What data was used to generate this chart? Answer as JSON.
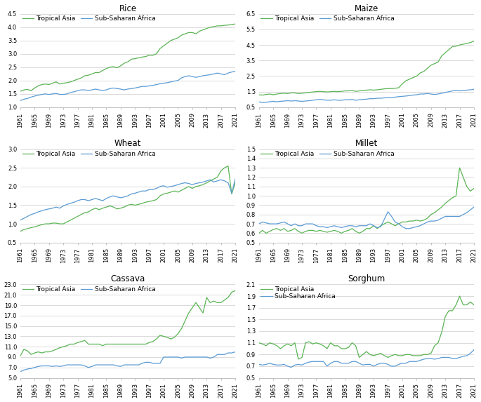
{
  "years": [
    1961,
    1962,
    1963,
    1964,
    1965,
    1966,
    1967,
    1968,
    1969,
    1970,
    1971,
    1972,
    1973,
    1974,
    1975,
    1976,
    1977,
    1978,
    1979,
    1980,
    1981,
    1982,
    1983,
    1984,
    1985,
    1986,
    1987,
    1988,
    1989,
    1990,
    1991,
    1992,
    1993,
    1994,
    1995,
    1996,
    1997,
    1998,
    1999,
    2000,
    2001,
    2002,
    2003,
    2004,
    2005,
    2006,
    2007,
    2008,
    2009,
    2010,
    2011,
    2012,
    2013,
    2014,
    2015,
    2016,
    2017,
    2018,
    2019,
    2020,
    2021
  ],
  "rice": {
    "asia": [
      1.6,
      1.65,
      1.67,
      1.62,
      1.72,
      1.8,
      1.85,
      1.87,
      1.85,
      1.9,
      1.95,
      1.87,
      1.9,
      1.92,
      1.95,
      2.0,
      2.05,
      2.1,
      2.18,
      2.2,
      2.25,
      2.3,
      2.3,
      2.38,
      2.45,
      2.5,
      2.52,
      2.48,
      2.55,
      2.65,
      2.7,
      2.8,
      2.82,
      2.85,
      2.88,
      2.9,
      2.95,
      2.95,
      3.0,
      3.2,
      3.3,
      3.4,
      3.5,
      3.55,
      3.6,
      3.7,
      3.75,
      3.8,
      3.8,
      3.75,
      3.85,
      3.9,
      3.95,
      4.0,
      4.02,
      4.05,
      4.05,
      4.07,
      4.08,
      4.1,
      4.12
    ],
    "africa": [
      1.25,
      1.3,
      1.33,
      1.38,
      1.42,
      1.45,
      1.48,
      1.5,
      1.48,
      1.5,
      1.52,
      1.48,
      1.48,
      1.5,
      1.55,
      1.58,
      1.62,
      1.65,
      1.65,
      1.63,
      1.65,
      1.68,
      1.65,
      1.63,
      1.65,
      1.7,
      1.72,
      1.7,
      1.68,
      1.65,
      1.68,
      1.7,
      1.72,
      1.75,
      1.78,
      1.78,
      1.8,
      1.82,
      1.85,
      1.88,
      1.9,
      1.92,
      1.95,
      1.98,
      2.0,
      2.1,
      2.15,
      2.18,
      2.15,
      2.12,
      2.15,
      2.18,
      2.2,
      2.22,
      2.25,
      2.28,
      2.25,
      2.22,
      2.28,
      2.32,
      2.35
    ]
  },
  "maize": {
    "asia": [
      1.3,
      1.28,
      1.32,
      1.35,
      1.3,
      1.35,
      1.38,
      1.4,
      1.38,
      1.42,
      1.42,
      1.38,
      1.4,
      1.42,
      1.45,
      1.48,
      1.5,
      1.52,
      1.5,
      1.48,
      1.5,
      1.52,
      1.5,
      1.52,
      1.55,
      1.55,
      1.58,
      1.52,
      1.55,
      1.58,
      1.6,
      1.62,
      1.6,
      1.62,
      1.65,
      1.68,
      1.7,
      1.7,
      1.72,
      1.75,
      2.0,
      2.2,
      2.3,
      2.4,
      2.5,
      2.7,
      2.8,
      3.0,
      3.2,
      3.3,
      3.4,
      3.8,
      4.0,
      4.2,
      4.4,
      4.42,
      4.5,
      4.55,
      4.6,
      4.65,
      4.75
    ],
    "africa": [
      0.85,
      0.8,
      0.82,
      0.85,
      0.88,
      0.85,
      0.88,
      0.9,
      0.92,
      0.9,
      0.92,
      0.9,
      0.88,
      0.9,
      0.92,
      0.95,
      0.98,
      1.0,
      0.98,
      0.95,
      0.95,
      0.98,
      0.95,
      0.95,
      0.98,
      0.98,
      1.0,
      0.95,
      0.98,
      1.0,
      1.02,
      1.05,
      1.05,
      1.08,
      1.08,
      1.1,
      1.12,
      1.12,
      1.15,
      1.18,
      1.2,
      1.22,
      1.25,
      1.28,
      1.3,
      1.35,
      1.35,
      1.38,
      1.35,
      1.32,
      1.35,
      1.4,
      1.45,
      1.5,
      1.55,
      1.58,
      1.55,
      1.58,
      1.6,
      1.62,
      1.65
    ]
  },
  "wheat": {
    "asia": [
      0.8,
      0.85,
      0.87,
      0.9,
      0.92,
      0.95,
      0.98,
      1.0,
      1.0,
      1.02,
      1.02,
      1.0,
      1.0,
      1.05,
      1.1,
      1.15,
      1.2,
      1.25,
      1.3,
      1.32,
      1.38,
      1.42,
      1.38,
      1.42,
      1.45,
      1.48,
      1.45,
      1.4,
      1.42,
      1.45,
      1.5,
      1.52,
      1.5,
      1.52,
      1.55,
      1.58,
      1.6,
      1.62,
      1.65,
      1.75,
      1.8,
      1.82,
      1.85,
      1.88,
      1.85,
      1.9,
      1.95,
      2.0,
      1.95,
      2.0,
      2.02,
      2.05,
      2.1,
      2.15,
      2.2,
      2.25,
      2.42,
      2.5,
      2.55,
      1.8,
      2.1
    ],
    "africa": [
      1.1,
      1.15,
      1.2,
      1.25,
      1.28,
      1.32,
      1.35,
      1.38,
      1.4,
      1.42,
      1.45,
      1.42,
      1.48,
      1.52,
      1.55,
      1.58,
      1.62,
      1.65,
      1.65,
      1.62,
      1.65,
      1.68,
      1.65,
      1.62,
      1.68,
      1.72,
      1.75,
      1.72,
      1.7,
      1.72,
      1.75,
      1.8,
      1.82,
      1.85,
      1.88,
      1.88,
      1.92,
      1.92,
      1.95,
      2.0,
      2.02,
      1.98,
      2.0,
      2.02,
      2.05,
      2.08,
      2.1,
      2.08,
      2.05,
      2.08,
      2.1,
      2.12,
      2.15,
      2.18,
      2.12,
      2.15,
      2.18,
      2.15,
      2.1,
      1.82,
      2.2
    ]
  },
  "millet": {
    "asia": [
      0.6,
      0.63,
      0.6,
      0.62,
      0.64,
      0.65,
      0.63,
      0.65,
      0.62,
      0.63,
      0.65,
      0.62,
      0.6,
      0.62,
      0.63,
      0.63,
      0.62,
      0.63,
      0.62,
      0.61,
      0.62,
      0.63,
      0.62,
      0.6,
      0.62,
      0.63,
      0.65,
      0.62,
      0.6,
      0.62,
      0.65,
      0.65,
      0.68,
      0.65,
      0.68,
      0.7,
      0.72,
      0.7,
      0.68,
      0.7,
      0.72,
      0.72,
      0.73,
      0.73,
      0.74,
      0.73,
      0.74,
      0.76,
      0.8,
      0.82,
      0.85,
      0.88,
      0.92,
      0.95,
      0.98,
      1.0,
      1.3,
      1.2,
      1.1,
      1.05,
      1.08
    ],
    "africa": [
      0.7,
      0.72,
      0.71,
      0.7,
      0.7,
      0.7,
      0.71,
      0.72,
      0.7,
      0.68,
      0.7,
      0.68,
      0.68,
      0.7,
      0.7,
      0.7,
      0.68,
      0.67,
      0.67,
      0.66,
      0.67,
      0.68,
      0.67,
      0.66,
      0.67,
      0.68,
      0.68,
      0.67,
      0.68,
      0.68,
      0.68,
      0.7,
      0.68,
      0.66,
      0.67,
      0.75,
      0.83,
      0.78,
      0.72,
      0.7,
      0.67,
      0.65,
      0.65,
      0.66,
      0.67,
      0.68,
      0.7,
      0.72,
      0.73,
      0.73,
      0.74,
      0.76,
      0.78,
      0.78,
      0.78,
      0.78,
      0.78,
      0.8,
      0.82,
      0.85,
      0.88
    ]
  },
  "cassava": {
    "asia": [
      9.2,
      10.5,
      10.2,
      9.5,
      9.8,
      10.0,
      9.8,
      10.0,
      10.0,
      10.2,
      10.5,
      10.8,
      11.0,
      11.2,
      11.5,
      11.5,
      11.8,
      12.0,
      12.2,
      11.5,
      11.5,
      11.5,
      11.5,
      11.2,
      11.5,
      11.5,
      11.5,
      11.5,
      11.5,
      11.5,
      11.5,
      11.5,
      11.5,
      11.5,
      11.5,
      11.5,
      11.8,
      12.0,
      12.5,
      13.2,
      13.0,
      12.8,
      12.5,
      12.8,
      13.5,
      14.5,
      16.0,
      17.5,
      18.5,
      19.5,
      18.5,
      17.5,
      20.5,
      19.5,
      19.8,
      19.5,
      19.5,
      20.0,
      20.5,
      21.5,
      21.8
    ],
    "africa": [
      6.2,
      6.5,
      6.7,
      6.8,
      7.0,
      7.2,
      7.3,
      7.3,
      7.3,
      7.2,
      7.3,
      7.2,
      7.3,
      7.5,
      7.5,
      7.5,
      7.5,
      7.5,
      7.3,
      7.0,
      7.2,
      7.5,
      7.5,
      7.5,
      7.5,
      7.5,
      7.5,
      7.3,
      7.2,
      7.5,
      7.5,
      7.5,
      7.5,
      7.5,
      7.8,
      8.0,
      8.0,
      7.8,
      7.8,
      7.8,
      9.0,
      9.0,
      9.0,
      9.0,
      9.0,
      8.8,
      9.0,
      9.0,
      9.0,
      9.0,
      9.0,
      9.0,
      9.0,
      8.8,
      9.0,
      9.5,
      9.5,
      9.5,
      9.8,
      9.8,
      10.0
    ]
  },
  "sorghum": {
    "asia": [
      1.1,
      1.08,
      1.05,
      1.1,
      1.08,
      1.05,
      1.0,
      1.05,
      1.08,
      1.05,
      1.1,
      0.82,
      0.85,
      1.1,
      1.12,
      1.08,
      1.1,
      1.08,
      1.05,
      1.0,
      1.1,
      1.05,
      1.05,
      1.0,
      1.0,
      1.02,
      1.1,
      1.05,
      0.85,
      0.9,
      0.95,
      0.9,
      0.88,
      0.9,
      0.92,
      0.88,
      0.85,
      0.88,
      0.9,
      0.88,
      0.88,
      0.9,
      0.9,
      0.88,
      0.88,
      0.88,
      0.9,
      0.9,
      0.92,
      1.05,
      1.1,
      1.28,
      1.55,
      1.65,
      1.65,
      1.75,
      1.9,
      1.75,
      1.75,
      1.8,
      1.75
    ],
    "africa": [
      0.73,
      0.72,
      0.73,
      0.75,
      0.73,
      0.72,
      0.72,
      0.73,
      0.7,
      0.68,
      0.72,
      0.73,
      0.72,
      0.75,
      0.77,
      0.78,
      0.78,
      0.78,
      0.78,
      0.7,
      0.75,
      0.78,
      0.78,
      0.75,
      0.75,
      0.75,
      0.78,
      0.78,
      0.75,
      0.72,
      0.73,
      0.73,
      0.7,
      0.73,
      0.75,
      0.75,
      0.73,
      0.7,
      0.7,
      0.73,
      0.75,
      0.75,
      0.78,
      0.78,
      0.78,
      0.8,
      0.82,
      0.83,
      0.83,
      0.82,
      0.83,
      0.85,
      0.85,
      0.85,
      0.83,
      0.83,
      0.85,
      0.87,
      0.88,
      0.92,
      0.98
    ]
  },
  "asia_color": "#5ab454",
  "africa_color": "#5b9bd5",
  "title_fontsize": 8.5,
  "tick_fontsize": 6,
  "legend_fontsize": 6.5,
  "line_width": 0.9
}
